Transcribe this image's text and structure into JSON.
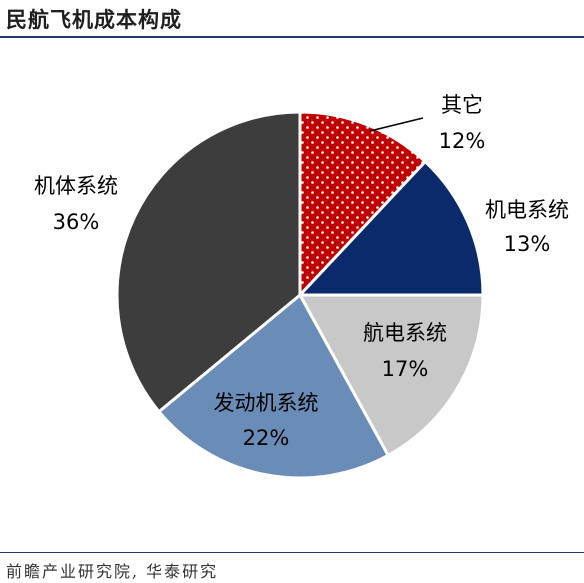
{
  "title": "民航飞机成本构成",
  "source": "前瞻产业研究院, 华泰研究",
  "colors": {
    "rule": "#1e3a6e",
    "edge": "#ffffff"
  },
  "chart_data": {
    "type": "pie",
    "slices": [
      {
        "name": "其它",
        "pct_label": "12%",
        "value": 12,
        "color": "#c00000",
        "pattern": "dots"
      },
      {
        "name": "机电系统",
        "pct_label": "13%",
        "value": 13,
        "color": "#0a2a6b"
      },
      {
        "name": "航电系统",
        "pct_label": "17%",
        "value": 17,
        "color": "#c8c8c8"
      },
      {
        "name": "发动机系统",
        "pct_label": "22%",
        "value": 22,
        "color": "#6a8db8"
      },
      {
        "name": "机体系统",
        "pct_label": "36%",
        "value": 36,
        "color": "#3d3d3d"
      }
    ]
  }
}
